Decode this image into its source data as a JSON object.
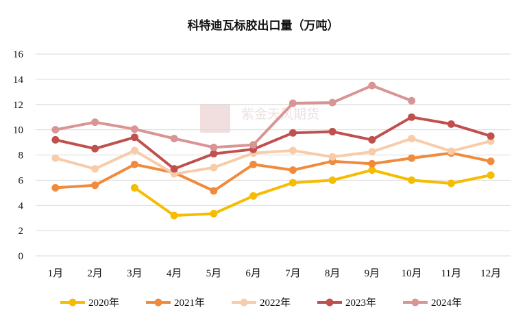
{
  "chart_data": {
    "type": "line",
    "title": "科特迪瓦标胶出口量（万吨）",
    "categories": [
      "1月",
      "2月",
      "3月",
      "4月",
      "5月",
      "6月",
      "7月",
      "8月",
      "9月",
      "10月",
      "11月",
      "12月"
    ],
    "ylim": [
      0,
      16
    ],
    "yticks": [
      0,
      2,
      4,
      6,
      8,
      10,
      12,
      14,
      16
    ],
    "grid": true,
    "legend": "bottom",
    "series": [
      {
        "name": "2020年",
        "color": "#F5BC00",
        "values": [
          null,
          null,
          5.4,
          3.2,
          3.35,
          4.75,
          5.8,
          6.0,
          6.8,
          6.0,
          5.75,
          6.4
        ]
      },
      {
        "name": "2021年",
        "color": "#F08A3C",
        "values": [
          5.4,
          5.6,
          7.25,
          6.6,
          5.15,
          7.25,
          6.8,
          7.5,
          7.3,
          7.75,
          8.15,
          7.5
        ]
      },
      {
        "name": "2022年",
        "color": "#F8CCA8",
        "values": [
          7.75,
          6.9,
          8.35,
          6.5,
          7.0,
          8.15,
          8.35,
          7.85,
          8.25,
          9.3,
          8.3,
          9.1
        ]
      },
      {
        "name": "2023年",
        "color": "#C0504D",
        "values": [
          9.2,
          8.5,
          9.4,
          6.9,
          8.1,
          8.45,
          9.75,
          9.85,
          9.2,
          11.0,
          10.45,
          9.5
        ]
      },
      {
        "name": "2024年",
        "color": "#D99594",
        "values": [
          10.0,
          10.6,
          10.05,
          9.3,
          8.6,
          8.8,
          12.1,
          12.15,
          13.5,
          12.3,
          null,
          null
        ]
      }
    ]
  },
  "watermark": {
    "text": "紫金天风期货",
    "seal_text": "紫金天风"
  }
}
